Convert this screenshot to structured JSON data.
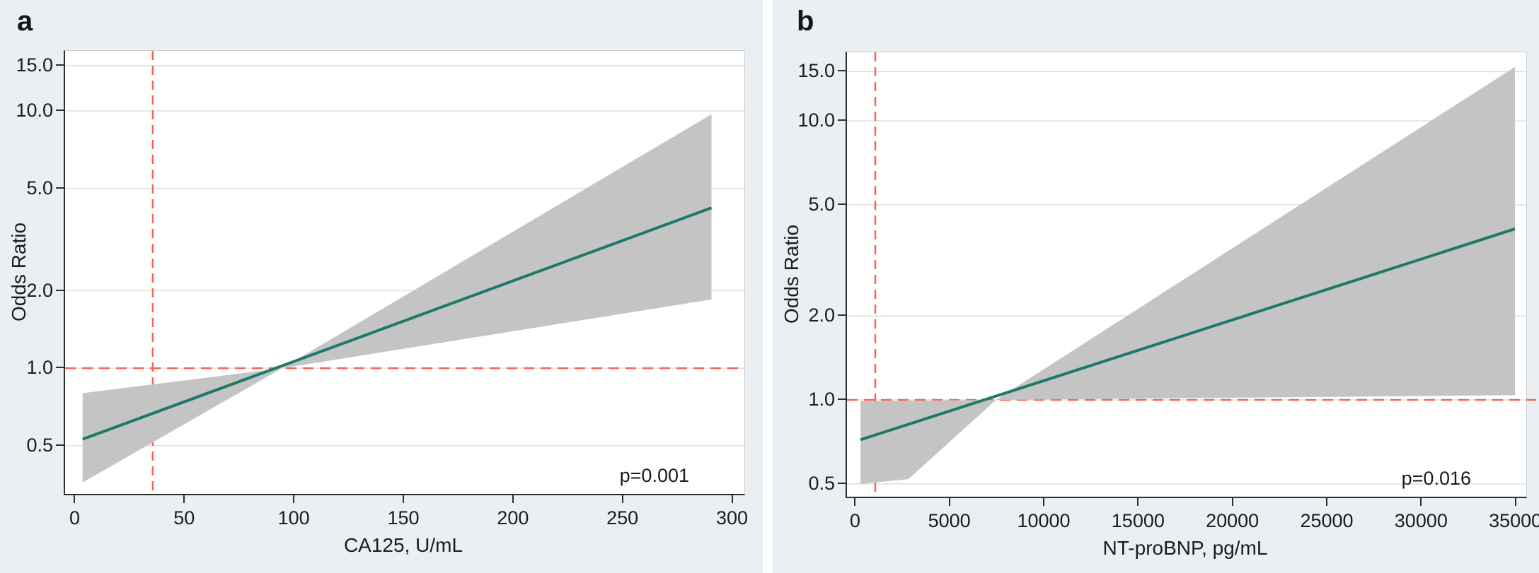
{
  "figure": {
    "panel_background": "#e9eff3",
    "divider_color": "#ffffff"
  },
  "colors": {
    "trend_line": "#1b7a6a",
    "ci_band": "#c4c4c4",
    "reference_line": "#f4655c",
    "gridline": "#dfdfdf",
    "axis": "#2f2f2f",
    "text": "#1c1c1c",
    "plot_background": "#ffffff"
  },
  "chart_data": [
    {
      "id": "a",
      "type": "line",
      "panel_label": "a",
      "ylabel": "Odds Ratio",
      "xlabel": "CA125, U/mL",
      "p_value_label": "p=0.001",
      "y_scale": "log",
      "y_tick_values": [
        15,
        10,
        5,
        2,
        1,
        0.5
      ],
      "y_tick_labels": [
        "15.0",
        "10.0",
        "5.0",
        "2.0",
        "1.0",
        "0.5"
      ],
      "x_tick_values": [
        0,
        50,
        100,
        150,
        200,
        250,
        300
      ],
      "x_tick_labels": [
        "0",
        "50",
        "100",
        "150",
        "200",
        "250",
        "300"
      ],
      "xlim": [
        -5,
        305
      ],
      "ylim_log": [
        0.325,
        17.1
      ],
      "reference_x": 35,
      "reference_or": 1.0,
      "or_equals_1_at_x": 94,
      "trend_line_points": [
        [
          3,
          0.53
        ],
        [
          290,
          4.2
        ]
      ],
      "ci_band_upper": [
        [
          3,
          0.8
        ],
        [
          94,
          1.0
        ],
        [
          290,
          9.7
        ]
      ],
      "ci_band_lower": [
        [
          3,
          0.36
        ],
        [
          94,
          1.0
        ],
        [
          290,
          1.85
        ]
      ]
    },
    {
      "id": "b",
      "type": "line",
      "panel_label": "b",
      "ylabel": "Odds Ratio",
      "xlabel": "NT-proBNP, pg/mL",
      "p_value_label": "p=0.016",
      "y_scale": "log",
      "y_tick_values": [
        15,
        10,
        5,
        2,
        1,
        0.5
      ],
      "y_tick_labels": [
        "15.0",
        "10.0",
        "5.0",
        "2.0",
        "1.0",
        "0.5"
      ],
      "x_tick_values": [
        0,
        5000,
        10000,
        15000,
        20000,
        25000,
        30000,
        35000
      ],
      "x_tick_labels": [
        "0",
        "5000",
        "10000",
        "15000",
        "20000",
        "25000",
        "30000",
        "35000"
      ],
      "xlim": [
        -500,
        35500
      ],
      "ylim_log": [
        0.45,
        17.6
      ],
      "reference_x": 1000,
      "reference_or": 1.0,
      "or_equals_1_at_x": 7400,
      "trend_line_points": [
        [
          220,
          0.72
        ],
        [
          34900,
          4.1
        ]
      ],
      "ci_band_upper": [
        [
          220,
          0.99
        ],
        [
          7400,
          1.0
        ],
        [
          34900,
          15.6
        ]
      ],
      "ci_band_lower": [
        [
          220,
          0.5
        ],
        [
          2750,
          0.52
        ],
        [
          7400,
          1.0
        ],
        [
          34900,
          1.04
        ]
      ]
    }
  ]
}
